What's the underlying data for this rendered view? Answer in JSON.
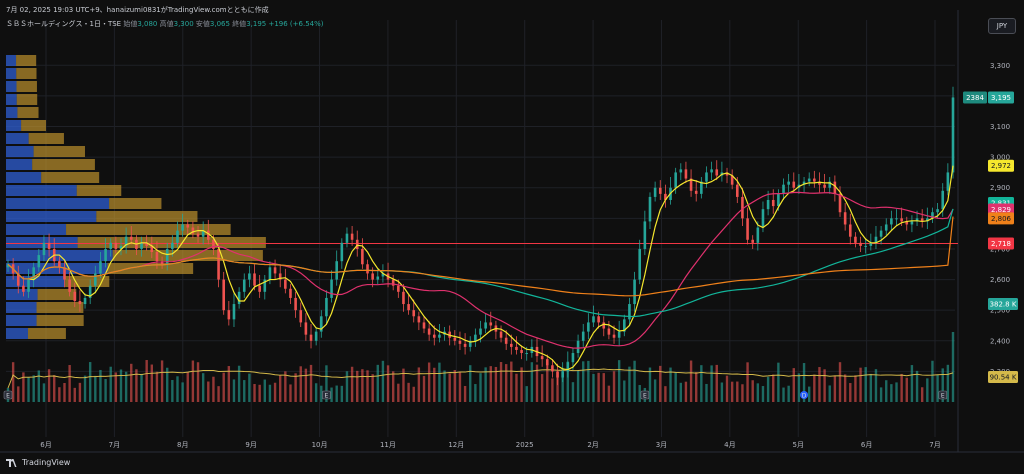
{
  "header": {
    "snapshot": "7月 02, 2025 19:03 UTC+9、hanaizumi0831がTradingView.comとともに作成",
    "symbol": "ＳＢＳホールディングス・1日・TSE",
    "ohlc": [
      {
        "label": "始値",
        "value": "3,080"
      },
      {
        "label": "高値",
        "value": "3,300"
      },
      {
        "label": "安値",
        "value": "3,065"
      },
      {
        "label": "終値",
        "value": "3,195"
      }
    ],
    "change": "+196 (+6.54%)"
  },
  "currency_button": "JPY",
  "footer": {
    "brand": "TradingView"
  },
  "colors": {
    "background": "#0f0f0f",
    "up": "#26a69a",
    "down": "#ef5350",
    "grid": "#1f2127",
    "ma_fast": "#f5e72d",
    "ma_mid": "#e0316e",
    "ma_slow": "#12b59a",
    "ma_long": "#f0811a",
    "volume_ma": "#d4b94a",
    "support_line": "#f23645",
    "profile_up": "#2f5fd3",
    "profile_down": "#c99a2e"
  },
  "chart_data": {
    "type": "candlestick",
    "title": "ＳＢＳホールディングス・1日・TSE",
    "y_ticks": [
      "3,300",
      "3,200",
      "3,100",
      "3,000",
      "2,900",
      "2,800",
      "2,700",
      "2,600",
      "2,500",
      "2,400",
      "2,300"
    ],
    "ylim": [
      2200,
      3350
    ],
    "x_ticks": [
      "6月",
      "7月",
      "8月",
      "9月",
      "10月",
      "11月",
      "12月",
      "2025",
      "2月",
      "3月",
      "4月",
      "5月",
      "6月",
      "7月"
    ],
    "grid": true,
    "closes": [
      2650,
      2620,
      2580,
      2560,
      2600,
      2640,
      2680,
      2720,
      2700,
      2660,
      2640,
      2600,
      2560,
      2530,
      2520,
      2540,
      2580,
      2620,
      2660,
      2700,
      2720,
      2700,
      2710,
      2740,
      2730,
      2700,
      2720,
      2710,
      2690,
      2660,
      2650,
      2700,
      2720,
      2760,
      2780,
      2770,
      2750,
      2740,
      2760,
      2730,
      2700,
      2600,
      2500,
      2470,
      2520,
      2560,
      2600,
      2620,
      2580,
      2560,
      2600,
      2640,
      2620,
      2600,
      2570,
      2540,
      2500,
      2460,
      2420,
      2400,
      2430,
      2480,
      2540,
      2600,
      2660,
      2720,
      2750,
      2730,
      2700,
      2650,
      2620,
      2600,
      2610,
      2620,
      2600,
      2580,
      2560,
      2520,
      2500,
      2480,
      2460,
      2440,
      2420,
      2410,
      2420,
      2430,
      2410,
      2400,
      2390,
      2380,
      2400,
      2420,
      2440,
      2460,
      2450,
      2430,
      2410,
      2390,
      2380,
      2370,
      2360,
      2360,
      2380,
      2350,
      2340,
      2320,
      2300,
      2280,
      2300,
      2330,
      2360,
      2400,
      2430,
      2460,
      2480,
      2460,
      2440,
      2420,
      2410,
      2430,
      2470,
      2520,
      2600,
      2700,
      2790,
      2870,
      2900,
      2880,
      2860,
      2900,
      2950,
      2960,
      2930,
      2890,
      2880,
      2920,
      2950,
      2960,
      2940,
      2950,
      2940,
      2910,
      2870,
      2800,
      2730,
      2720,
      2770,
      2830,
      2860,
      2840,
      2880,
      2910,
      2920,
      2900,
      2910,
      2920,
      2930,
      2920,
      2910,
      2900,
      2920,
      2880,
      2820,
      2780,
      2740,
      2720,
      2710,
      2710,
      2720,
      2740,
      2760,
      2780,
      2800,
      2800,
      2790,
      2780,
      2790,
      2800,
      2790,
      2800,
      2820,
      2830,
      2890,
      2950,
      3195
    ],
    "moving_averages": [
      {
        "period": 5,
        "last": 2972,
        "label": "2,972"
      },
      {
        "period": 25,
        "last": 2829,
        "label": "2,829"
      },
      {
        "period": 75,
        "last": 2831,
        "label": "2,831"
      },
      {
        "period": 200,
        "last": 2806,
        "label": "2,806"
      }
    ],
    "horizontal_line": {
      "value": 2718,
      "label": "2,718"
    },
    "price_tags": [
      {
        "label": "2384",
        "kind": "countdown"
      },
      {
        "label": "3,195",
        "kind": "last_price"
      },
      {
        "label": "2,972",
        "kind": "ma"
      },
      {
        "label": "2,831",
        "kind": "ma"
      },
      {
        "label": "2,829",
        "kind": "ma"
      },
      {
        "label": "2,806",
        "kind": "ma"
      },
      {
        "label": "2,718",
        "kind": "line"
      },
      {
        "label": "382.8 K",
        "kind": "volume"
      },
      {
        "label": "90.54 K",
        "kind": "volume_ma"
      }
    ],
    "volume": {
      "last": "382.8 K",
      "ma_last": "90.54 K"
    },
    "events": [
      {
        "symbol": "E",
        "index": 0
      },
      {
        "symbol": "E",
        "index": 62
      },
      {
        "symbol": "E",
        "index": 124
      },
      {
        "symbol": "D",
        "index": 155
      },
      {
        "symbol": "E",
        "index": 182
      },
      {
        "symbol": "E",
        "index": 238
      },
      {
        "symbol": "P",
        "index": 271
      }
    ]
  }
}
